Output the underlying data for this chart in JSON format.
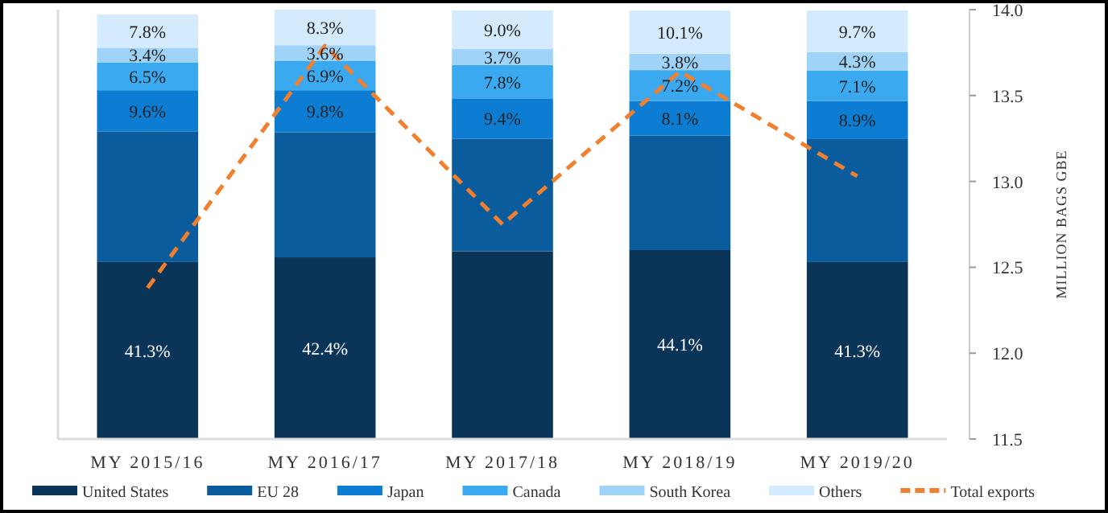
{
  "chart_data": {
    "type": "bar",
    "stacked": true,
    "categories": [
      "MY 2015/16",
      "MY 2016/17",
      "MY 2017/18",
      "MY 2018/19",
      "MY 2019/20"
    ],
    "series": [
      {
        "name": "United States",
        "color": "#0b3459",
        "values": [
          41.3,
          42.4,
          43.8,
          44.1,
          41.3
        ],
        "value_labels": [
          "41.3%",
          "42.4%",
          null,
          "44.1%",
          "41.3%"
        ]
      },
      {
        "name": "EU 28",
        "color": "#0a5c9c",
        "values": [
          30.5,
          29.2,
          26.3,
          26.7,
          28.7
        ],
        "value_labels": [
          null,
          null,
          null,
          null,
          null
        ]
      },
      {
        "name": "Japan",
        "color": "#0c7dd3",
        "values": [
          9.6,
          9.8,
          9.4,
          8.1,
          8.9
        ],
        "value_labels": [
          "9.6%",
          "9.8%",
          "9.4%",
          "8.1%",
          "8.9%"
        ]
      },
      {
        "name": "Canada",
        "color": "#3ba9f0",
        "values": [
          6.5,
          6.9,
          7.8,
          7.2,
          7.1
        ],
        "value_labels": [
          "6.5%",
          "6.9%",
          "7.8%",
          "7.2%",
          "7.1%"
        ]
      },
      {
        "name": "South Korea",
        "color": "#9fd3f8",
        "values": [
          3.4,
          3.6,
          3.7,
          3.8,
          4.3
        ],
        "value_labels": [
          "3.4%",
          "3.6%",
          "3.7%",
          "3.8%",
          "4.3%"
        ]
      },
      {
        "name": "Others",
        "color": "#d3ebfc",
        "values": [
          7.8,
          8.3,
          9.0,
          10.1,
          9.7
        ],
        "value_labels": [
          "7.8%",
          "8.3%",
          "9.0%",
          "10.1%",
          "9.7%"
        ]
      },
      {
        "name": "Total exports",
        "type": "line",
        "axis": "y2",
        "line_style": "dashed",
        "color": "#f07f2e",
        "values": [
          12.38,
          13.79,
          12.75,
          13.64,
          13.03
        ]
      }
    ],
    "y2label": "MILLION BAGS GBE",
    "y2lim": [
      11.5,
      14.0
    ],
    "y2ticks": [
      {
        "value": 11.5,
        "label": "11.5"
      },
      {
        "value": 12,
        "label": "12.0"
      },
      {
        "value": 12.5,
        "label": "12.5"
      },
      {
        "value": 13,
        "label": "13.0"
      },
      {
        "value": 13.5,
        "label": "13.5"
      },
      {
        "value": 14,
        "label": "14.0"
      }
    ],
    "legend": "bottom"
  }
}
